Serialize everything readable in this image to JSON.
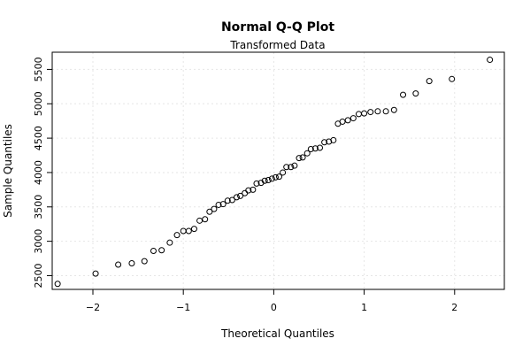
{
  "chart_data": {
    "type": "scatter",
    "title": "Normal Q-Q Plot",
    "subtitle": "Transformed Data",
    "xlabel": "Theoretical Quantiles",
    "ylabel": "Sample Quantiles",
    "xlim": [
      -2.45,
      2.55
    ],
    "ylim": [
      2300,
      5750
    ],
    "grid": true,
    "x_ticks": [
      -2,
      -1,
      0,
      1,
      2
    ],
    "x_tick_labels": [
      "−2",
      "−1",
      "0",
      "1",
      "2"
    ],
    "y_ticks": [
      2500,
      3000,
      3500,
      4000,
      4500,
      5000,
      5500
    ],
    "y_tick_labels": [
      "2500",
      "3000",
      "3500",
      "4000",
      "4500",
      "5000",
      "5500"
    ],
    "points": [
      {
        "x": -2.39,
        "y": 2380
      },
      {
        "x": -1.97,
        "y": 2530
      },
      {
        "x": -1.72,
        "y": 2660
      },
      {
        "x": -1.57,
        "y": 2680
      },
      {
        "x": -1.43,
        "y": 2710
      },
      {
        "x": -1.33,
        "y": 2860
      },
      {
        "x": -1.24,
        "y": 2870
      },
      {
        "x": -1.15,
        "y": 2980
      },
      {
        "x": -1.07,
        "y": 3090
      },
      {
        "x": -1.0,
        "y": 3150
      },
      {
        "x": -0.94,
        "y": 3150
      },
      {
        "x": -0.88,
        "y": 3180
      },
      {
        "x": -0.82,
        "y": 3300
      },
      {
        "x": -0.76,
        "y": 3320
      },
      {
        "x": -0.71,
        "y": 3430
      },
      {
        "x": -0.66,
        "y": 3470
      },
      {
        "x": -0.61,
        "y": 3530
      },
      {
        "x": -0.56,
        "y": 3540
      },
      {
        "x": -0.51,
        "y": 3590
      },
      {
        "x": -0.46,
        "y": 3600
      },
      {
        "x": -0.41,
        "y": 3640
      },
      {
        "x": -0.37,
        "y": 3660
      },
      {
        "x": -0.32,
        "y": 3700
      },
      {
        "x": -0.28,
        "y": 3740
      },
      {
        "x": -0.23,
        "y": 3750
      },
      {
        "x": -0.19,
        "y": 3840
      },
      {
        "x": -0.14,
        "y": 3850
      },
      {
        "x": -0.1,
        "y": 3880
      },
      {
        "x": -0.06,
        "y": 3890
      },
      {
        "x": -0.02,
        "y": 3910
      },
      {
        "x": 0.02,
        "y": 3930
      },
      {
        "x": 0.06,
        "y": 3940
      },
      {
        "x": 0.1,
        "y": 4000
      },
      {
        "x": 0.14,
        "y": 4080
      },
      {
        "x": 0.19,
        "y": 4080
      },
      {
        "x": 0.23,
        "y": 4100
      },
      {
        "x": 0.28,
        "y": 4210
      },
      {
        "x": 0.32,
        "y": 4220
      },
      {
        "x": 0.37,
        "y": 4280
      },
      {
        "x": 0.41,
        "y": 4340
      },
      {
        "x": 0.46,
        "y": 4350
      },
      {
        "x": 0.51,
        "y": 4360
      },
      {
        "x": 0.56,
        "y": 4440
      },
      {
        "x": 0.61,
        "y": 4450
      },
      {
        "x": 0.66,
        "y": 4470
      },
      {
        "x": 0.71,
        "y": 4710
      },
      {
        "x": 0.76,
        "y": 4740
      },
      {
        "x": 0.82,
        "y": 4760
      },
      {
        "x": 0.88,
        "y": 4790
      },
      {
        "x": 0.94,
        "y": 4850
      },
      {
        "x": 1.0,
        "y": 4860
      },
      {
        "x": 1.07,
        "y": 4880
      },
      {
        "x": 1.15,
        "y": 4890
      },
      {
        "x": 1.24,
        "y": 4890
      },
      {
        "x": 1.33,
        "y": 4910
      },
      {
        "x": 1.43,
        "y": 5130
      },
      {
        "x": 1.57,
        "y": 5150
      },
      {
        "x": 1.72,
        "y": 5330
      },
      {
        "x": 1.97,
        "y": 5360
      },
      {
        "x": 2.39,
        "y": 5640
      }
    ]
  }
}
